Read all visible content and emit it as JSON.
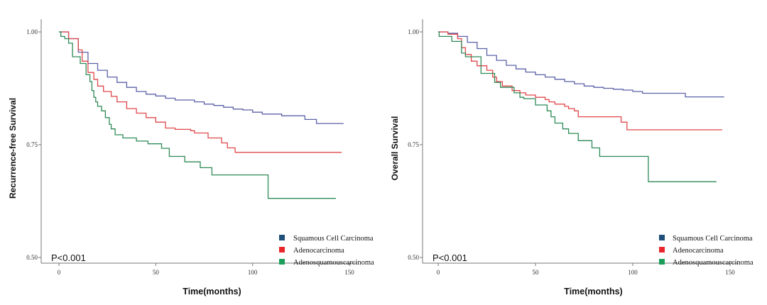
{
  "chart_data": [
    {
      "type": "line",
      "step": true,
      "ylabel": "Recurrence-free Survival",
      "xlabel": "Time(months)",
      "annotation": "P<0.001",
      "xlim": [
        -9,
        156
      ],
      "ylim": [
        0.487,
        1.03
      ],
      "xticks": [
        0,
        50,
        100,
        150
      ],
      "yticks": [
        0.5,
        0.75,
        1.0
      ],
      "ytick_labels": [
        "0.50",
        "0.75",
        "1.00"
      ],
      "grid": false,
      "legend_position": "bottom-right",
      "series": [
        {
          "name": "Squamous Cell Carcinoma",
          "color": "#5b62a8",
          "legend_color": "#1f4e79",
          "x": [
            0,
            5,
            10,
            15,
            20,
            25,
            30,
            35,
            40,
            45,
            50,
            55,
            60,
            70,
            75,
            80,
            85,
            90,
            95,
            100,
            105,
            115,
            127,
            133,
            147
          ],
          "y": [
            1.0,
            0.985,
            0.955,
            0.93,
            0.915,
            0.9,
            0.888,
            0.877,
            0.868,
            0.862,
            0.858,
            0.853,
            0.849,
            0.845,
            0.84,
            0.837,
            0.833,
            0.829,
            0.827,
            0.822,
            0.818,
            0.814,
            0.806,
            0.797,
            0.797
          ]
        },
        {
          "name": "Adenocarcinoma",
          "color": "#e0474b",
          "legend_color": "#e8262b",
          "x": [
            0,
            5,
            10,
            12,
            15,
            18,
            20,
            23,
            27,
            30,
            35,
            40,
            45,
            50,
            55,
            60,
            68,
            70,
            77,
            84,
            87,
            91,
            146
          ],
          "y": [
            1.0,
            0.985,
            0.96,
            0.935,
            0.91,
            0.895,
            0.88,
            0.868,
            0.857,
            0.845,
            0.83,
            0.82,
            0.81,
            0.8,
            0.787,
            0.784,
            0.781,
            0.776,
            0.765,
            0.754,
            0.743,
            0.733,
            0.733
          ]
        },
        {
          "name": "Adenosquamouscarcinoma",
          "color": "#2f8a57",
          "legend_color": "#1a9e5a",
          "x": [
            0,
            1,
            3,
            5,
            7,
            11,
            14,
            16,
            17,
            18,
            19,
            20,
            22,
            24,
            26,
            27,
            29,
            33,
            40,
            46,
            53,
            57,
            65,
            73,
            79,
            108,
            143
          ],
          "y": [
            1.0,
            0.99,
            0.985,
            0.975,
            0.945,
            0.93,
            0.905,
            0.89,
            0.87,
            0.855,
            0.845,
            0.835,
            0.825,
            0.81,
            0.795,
            0.785,
            0.772,
            0.765,
            0.758,
            0.752,
            0.742,
            0.724,
            0.712,
            0.699,
            0.683,
            0.631,
            0.631
          ]
        }
      ]
    },
    {
      "type": "line",
      "step": true,
      "ylabel": "Overall Survival",
      "xlabel": "Time(months)",
      "annotation": "P<0.001",
      "xlim": [
        -9,
        156
      ],
      "ylim": [
        0.487,
        1.03
      ],
      "xticks": [
        0,
        50,
        100,
        150
      ],
      "yticks": [
        0.5,
        0.75,
        1.0
      ],
      "ytick_labels": [
        "0.50",
        "0.75",
        "1.00"
      ],
      "grid": false,
      "legend_position": "bottom-right",
      "series": [
        {
          "name": "Squamous Cell Carcinoma",
          "color": "#5b62a8",
          "legend_color": "#1f4e79",
          "x": [
            0,
            5,
            10,
            15,
            20,
            25,
            30,
            35,
            40,
            45,
            50,
            55,
            60,
            65,
            70,
            75,
            80,
            85,
            90,
            95,
            100,
            105,
            127,
            147
          ],
          "y": [
            1.0,
            0.997,
            0.99,
            0.977,
            0.963,
            0.948,
            0.937,
            0.926,
            0.918,
            0.911,
            0.905,
            0.9,
            0.895,
            0.89,
            0.885,
            0.88,
            0.877,
            0.875,
            0.873,
            0.871,
            0.868,
            0.864,
            0.856,
            0.856
          ]
        },
        {
          "name": "Adenocarcinoma",
          "color": "#e0474b",
          "legend_color": "#e8262b",
          "x": [
            0,
            5,
            10,
            12,
            14,
            17,
            20,
            25,
            28,
            30,
            33,
            38,
            42,
            45,
            50,
            55,
            57,
            60,
            65,
            67,
            70,
            72,
            94,
            97,
            146
          ],
          "y": [
            1.0,
            0.995,
            0.985,
            0.965,
            0.95,
            0.935,
            0.925,
            0.915,
            0.9,
            0.89,
            0.88,
            0.87,
            0.865,
            0.86,
            0.855,
            0.85,
            0.845,
            0.84,
            0.835,
            0.83,
            0.825,
            0.812,
            0.8,
            0.783,
            0.783
          ]
        },
        {
          "name": "Adenosquamouscarcinoma",
          "color": "#2f8a57",
          "legend_color": "#1a9e5a",
          "x": [
            0,
            0.5,
            7,
            12,
            14,
            19,
            22,
            29,
            32,
            39,
            42,
            44,
            50,
            56,
            58,
            60,
            64,
            67,
            72,
            79,
            83,
            108,
            143
          ],
          "y": [
            1.0,
            0.99,
            0.979,
            0.953,
            0.945,
            0.945,
            0.908,
            0.888,
            0.877,
            0.865,
            0.855,
            0.852,
            0.838,
            0.825,
            0.812,
            0.798,
            0.785,
            0.775,
            0.759,
            0.743,
            0.724,
            0.668,
            0.668
          ]
        }
      ]
    }
  ]
}
